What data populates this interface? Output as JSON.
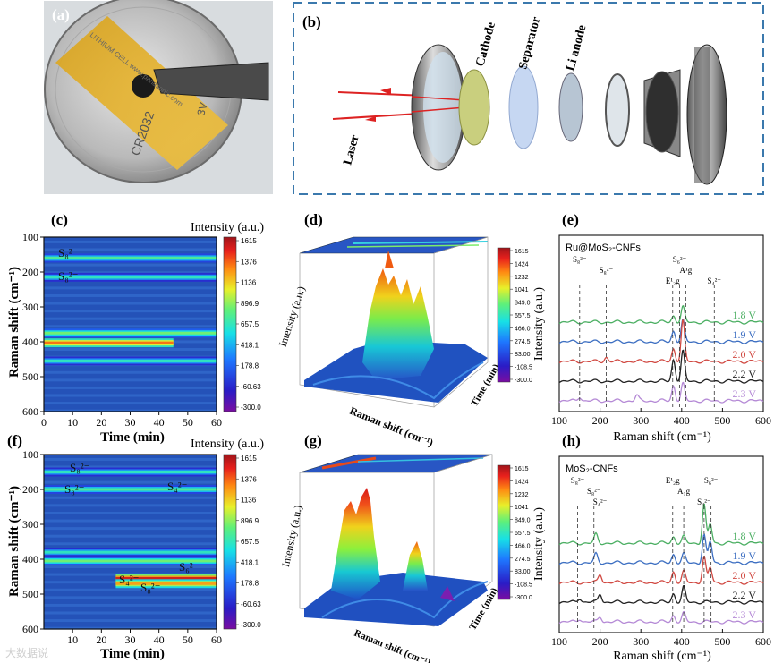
{
  "panels": {
    "a": {
      "label": "(a)",
      "coin_text": [
        "CR2032",
        "3V",
        "LITHIUM CELL www.panasonic.com"
      ]
    },
    "b": {
      "label": "(b)",
      "laser": "Laser",
      "cathode": "Cathode",
      "separator": "Separator",
      "li_anode": "Li anode"
    },
    "c": {
      "label": "(c)",
      "species_top": "S₈²⁻",
      "species_bot": "S₈²⁻"
    },
    "d": {
      "label": "(d)"
    },
    "e": {
      "label": "(e)",
      "sample": "Ru@MoS₂-CNFs"
    },
    "f": {
      "label": "(f)",
      "species_a": "S₈²⁻",
      "species_b": "S₈²⁻",
      "species_c": "S₄²⁻",
      "species_d": "S₄²⁻",
      "species_e": "S₈²⁻",
      "species_f": "S₆²⁻"
    },
    "g": {
      "label": "(g)"
    },
    "h": {
      "label": "(h)",
      "sample": "MoS₂-CNFs"
    }
  },
  "colorbar": {
    "title": "Intensity (a.u.)",
    "ticks": [
      "1615",
      "1376",
      "1136",
      "896.9",
      "657.5",
      "418.1",
      "178.8",
      "-60.63",
      "-300.0"
    ]
  },
  "colorbar3d": {
    "ticks": [
      "1615",
      "1424",
      "1232",
      "1041",
      "849.0",
      "657.5",
      "466.0",
      "274.5",
      "83.00",
      "-108.5",
      "-300.0"
    ]
  },
  "axes": {
    "raman_shift_cm": "Raman shift (cm⁻¹)",
    "time_min": "Time (min)",
    "intensity_au": "Intensity (a.u.)",
    "raman_shift_3d": "Raman shift (cm⁻¹)",
    "time_3d": "Time (min)"
  },
  "chart_data": [
    {
      "type": "heatmap",
      "panel": "c",
      "xlabel": "Time (min)",
      "ylabel": "Raman shift (cm⁻¹)",
      "x_ticks": [
        0,
        10,
        20,
        30,
        40,
        50,
        60
      ],
      "y_ticks": [
        100,
        200,
        300,
        400,
        500,
        600
      ],
      "xlim": [
        0,
        60
      ],
      "ylim": [
        100,
        600
      ],
      "bands": [
        {
          "shift": 160,
          "level": 0.55,
          "t_end": 60
        },
        {
          "shift": 215,
          "level": 0.5,
          "t_end": 60
        },
        {
          "shift": 375,
          "level": 0.6,
          "t_end": 60
        },
        {
          "shift": 403,
          "level": 0.85,
          "t_end": 45
        },
        {
          "shift": 455,
          "level": 0.5,
          "t_end": 60
        }
      ]
    },
    {
      "type": "heatmap",
      "panel": "f",
      "xlabel": "Time (min)",
      "ylabel": "Raman shift (cm⁻¹)",
      "x_ticks": [
        10,
        20,
        30,
        40,
        50,
        60
      ],
      "y_ticks": [
        100,
        200,
        300,
        400,
        500,
        600
      ],
      "xlim": [
        0,
        60
      ],
      "ylim": [
        100,
        600
      ],
      "bands": [
        {
          "shift": 150,
          "level": 0.5,
          "t_end": 60
        },
        {
          "shift": 200,
          "level": 0.55,
          "t_end": 60
        },
        {
          "shift": 380,
          "level": 0.5,
          "t_end": 60
        },
        {
          "shift": 405,
          "level": 0.6,
          "t_end": 60
        },
        {
          "shift": 455,
          "level": 0.95,
          "t_start": 25,
          "t_end": 60
        },
        {
          "shift": 470,
          "level": 0.8,
          "t_start": 25,
          "t_end": 60
        }
      ]
    },
    {
      "type": "line",
      "panel": "e",
      "xlabel": "Raman shift (cm⁻¹)",
      "ylabel": "Intensity (a.u.)",
      "x_ticks": [
        100,
        200,
        300,
        400,
        500,
        600
      ],
      "xlim": [
        100,
        600
      ],
      "series": [
        {
          "name": "1.8 V",
          "color": "#4caf63",
          "offset": 4,
          "peaks": [
            [
              380,
              0.3
            ],
            [
              403,
              0.7
            ]
          ]
        },
        {
          "name": "1.9 V",
          "color": "#3d6fc2",
          "offset": 3,
          "peaks": [
            [
              380,
              0.5
            ],
            [
              403,
              1.0
            ]
          ]
        },
        {
          "name": "2.0 V",
          "color": "#d14a43",
          "offset": 2,
          "peaks": [
            [
              215,
              0.2
            ],
            [
              380,
              0.6
            ],
            [
              403,
              1.9
            ]
          ]
        },
        {
          "name": "2.2 V",
          "color": "#222222",
          "offset": 1,
          "peaks": [
            [
              380,
              1.0
            ],
            [
              403,
              1.4
            ]
          ]
        },
        {
          "name": "2.3 V",
          "color": "#b58ad6",
          "offset": 0,
          "peaks": [
            [
              150,
              0.2
            ],
            [
              290,
              0.25
            ],
            [
              380,
              0.7
            ],
            [
              403,
              0.8
            ]
          ]
        }
      ],
      "annotations": [
        {
          "text": "S₈²⁻",
          "x": 150
        },
        {
          "text": "S₈²⁻",
          "x": 215
        },
        {
          "text": "E¹₂g",
          "x": 378
        },
        {
          "text": "S₆²⁻",
          "x": 395
        },
        {
          "text": "A¹g",
          "x": 410
        },
        {
          "text": "S₄²⁻",
          "x": 480
        }
      ]
    },
    {
      "type": "line",
      "panel": "h",
      "xlabel": "Raman shift (cm⁻¹)",
      "ylabel": "Intensity (a.u.)",
      "x_ticks": [
        100,
        200,
        300,
        400,
        500,
        600
      ],
      "xlim": [
        100,
        600
      ],
      "series": [
        {
          "name": "1.8 V",
          "color": "#4caf63",
          "offset": 4,
          "peaks": [
            [
              190,
              0.4
            ],
            [
              380,
              0.3
            ],
            [
              405,
              0.3
            ],
            [
              455,
              1.8
            ],
            [
              470,
              0.9
            ]
          ]
        },
        {
          "name": "1.9 V",
          "color": "#3d6fc2",
          "offset": 3,
          "peaks": [
            [
              190,
              0.4
            ],
            [
              380,
              0.4
            ],
            [
              405,
              0.4
            ],
            [
              455,
              1.3
            ],
            [
              470,
              1.0
            ]
          ]
        },
        {
          "name": "2.0 V",
          "color": "#d14a43",
          "offset": 2,
          "peaks": [
            [
              200,
              0.4
            ],
            [
              380,
              0.5
            ],
            [
              405,
              0.5
            ],
            [
              455,
              1.2
            ],
            [
              470,
              0.7
            ]
          ]
        },
        {
          "name": "2.2 V",
          "color": "#222222",
          "offset": 1,
          "peaks": [
            [
              150,
              0.2
            ],
            [
              200,
              0.4
            ],
            [
              380,
              0.4
            ],
            [
              405,
              0.7
            ]
          ]
        },
        {
          "name": "2.3 V",
          "color": "#b58ad6",
          "offset": 0,
          "peaks": [
            [
              150,
              0.15
            ],
            [
              200,
              0.25
            ],
            [
              380,
              0.3
            ],
            [
              405,
              0.4
            ]
          ]
        }
      ],
      "annotations": [
        {
          "text": "S₈²⁻",
          "x": 145
        },
        {
          "text": "S₈²⁻",
          "x": 185
        },
        {
          "text": "S₄²⁻",
          "x": 200
        },
        {
          "text": "E¹₂g",
          "x": 378
        },
        {
          "text": "A₁g",
          "x": 405
        },
        {
          "text": "S₄²⁻",
          "x": 455
        },
        {
          "text": "S₆²⁻",
          "x": 472
        }
      ]
    }
  ],
  "watermark": "大数据说"
}
